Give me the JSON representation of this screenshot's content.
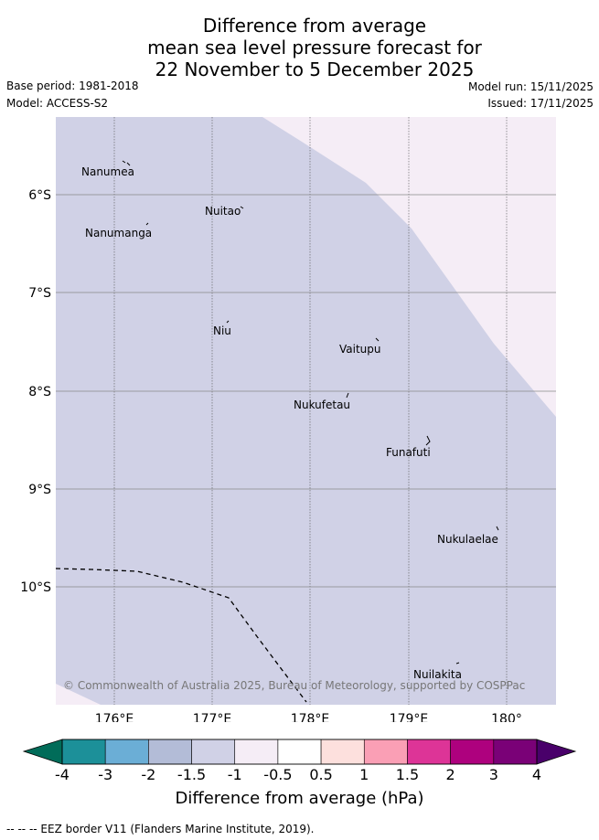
{
  "title_lines": [
    "Difference from average",
    "mean sea level pressure forecast for",
    "22 November to 5 December 2025"
  ],
  "meta": {
    "base_period": "Base period: 1981-2018",
    "model": "Model: ACCESS-S2",
    "model_run": "Model run: 15/11/2025",
    "issued": "Issued: 17/11/2025"
  },
  "map": {
    "lon_labels": [
      "176°E",
      "177°E",
      "178°E",
      "179°E",
      "180°"
    ],
    "lat_labels": [
      "6°S",
      "7°S",
      "8°S",
      "9°S",
      "10°S"
    ],
    "places": [
      {
        "name": "Nanumea"
      },
      {
        "name": "Nuitao"
      },
      {
        "name": "Nanumanga"
      },
      {
        "name": "Niu"
      },
      {
        "name": "Vaitupu"
      },
      {
        "name": "Nukufetau"
      },
      {
        "name": "Funafuti"
      },
      {
        "name": "Nukulaelae"
      },
      {
        "name": "Nuilakita"
      }
    ],
    "copyright": "© Commonwealth of Australia 2025, Bureau of Meteorology, supported by COSPPac",
    "fill_colors": {
      "main": "#d0d1e6",
      "light": "#f5edf6"
    }
  },
  "colorbar": {
    "ticks": [
      "-4",
      "-3",
      "-2",
      "-1.5",
      "-1",
      "-0.5",
      "0.5",
      "1",
      "1.5",
      "2",
      "3",
      "4"
    ],
    "colors": [
      "#1c9099",
      "#6baed6",
      "#b3bcd7",
      "#d0d1e6",
      "#f5edf6",
      "#ffffff",
      "#fde0dd",
      "#fa9fb5",
      "#dd3497",
      "#ae017e",
      "#7a0177"
    ],
    "under_color": "#016c59",
    "over_color": "#49006a",
    "label": "Difference from average (hPa)"
  },
  "footer": "-- -- -- EEZ border V11 (Flanders Marine Institute, 2019)."
}
